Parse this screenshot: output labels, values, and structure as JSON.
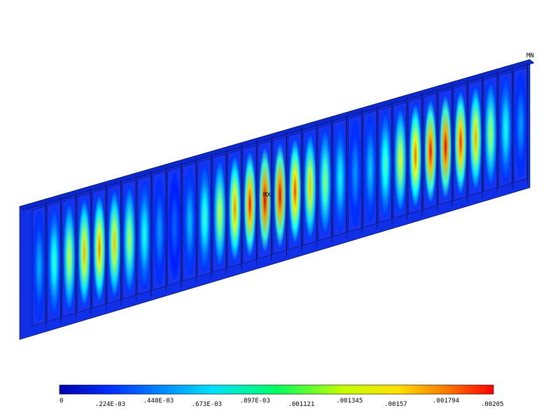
{
  "markers": {
    "min": "MN",
    "max": "MX"
  },
  "legend": {
    "ticks": [
      "0",
      ".224E-03",
      ".448E-03",
      ".673E-03",
      ".897E-03",
      ".001121",
      ".001345",
      ".00157",
      ".001794",
      ".00205"
    ]
  }
}
